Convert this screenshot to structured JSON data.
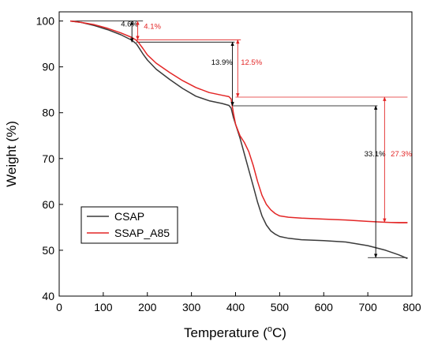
{
  "chart_data": {
    "type": "line",
    "xlabel_main": "Temperature (",
    "xlabel_sup": "o",
    "xlabel_end": "C)",
    "ylabel": "Weight (%)",
    "xlim": [
      0,
      800
    ],
    "ylim": [
      40,
      102
    ],
    "x_ticks": [
      0,
      100,
      200,
      300,
      400,
      500,
      600,
      700,
      800
    ],
    "y_ticks": [
      40,
      50,
      60,
      70,
      80,
      90,
      100
    ],
    "grid": false,
    "legend_position": "bottom-left",
    "series": [
      {
        "name": "CSAP",
        "color": "#3a3a3a",
        "x": [
          25,
          50,
          80,
          110,
          140,
          165,
          175,
          180,
          190,
          200,
          220,
          250,
          280,
          310,
          340,
          370,
          385,
          390,
          395,
          400,
          410,
          420,
          430,
          440,
          450,
          460,
          470,
          480,
          490,
          500,
          520,
          550,
          600,
          650,
          700,
          740,
          770,
          790
        ],
        "y": [
          100,
          99.7,
          99.0,
          98.1,
          97.0,
          95.8,
          95.0,
          94.3,
          92.8,
          91.5,
          89.5,
          87.3,
          85.3,
          83.6,
          82.6,
          82.0,
          81.6,
          81.0,
          79.0,
          77.5,
          74.5,
          71.0,
          67.5,
          64.0,
          60.5,
          57.5,
          55.5,
          54.2,
          53.5,
          53.0,
          52.6,
          52.3,
          52.1,
          51.8,
          51.0,
          50.0,
          49.0,
          48.2
        ]
      },
      {
        "name": "SSAP_A85",
        "color": "#e32626",
        "x": [
          25,
          50,
          80,
          110,
          140,
          165,
          175,
          180,
          190,
          200,
          220,
          250,
          280,
          310,
          340,
          370,
          385,
          390,
          395,
          400,
          410,
          420,
          430,
          440,
          450,
          460,
          470,
          480,
          490,
          500,
          520,
          550,
          600,
          650,
          700,
          740,
          770,
          790
        ],
        "y": [
          100,
          99.7,
          99.2,
          98.4,
          97.4,
          96.4,
          95.8,
          95.3,
          94.0,
          92.6,
          90.8,
          88.8,
          87.0,
          85.5,
          84.4,
          83.8,
          83.5,
          83.0,
          80.0,
          77.5,
          75.0,
          73.5,
          71.5,
          68.5,
          65.0,
          62.0,
          60.0,
          58.8,
          58.0,
          57.5,
          57.2,
          57.0,
          56.8,
          56.6,
          56.3,
          56.1,
          56.0,
          56.0
        ]
      }
    ],
    "annotations": [
      {
        "text": "4.6%",
        "color": "#000000",
        "x_text": 140,
        "y_text": 98.8,
        "arrow_x": 165,
        "y_from": 100,
        "y_to": 95.4,
        "line_x_from": 25,
        "line_x_to": 190,
        "ref_y": [
          100,
          95.4
        ]
      },
      {
        "text": "4.1%",
        "color": "#e32626",
        "x_text": 192,
        "y_text": 98.3,
        "arrow_x": 178,
        "y_from": 100,
        "y_to": 95.9,
        "ref_y": [
          95.9
        ]
      },
      {
        "text": "13.9%",
        "color": "#000000",
        "x_text": 345,
        "y_text": 90.5,
        "arrow_x": 393,
        "y_from": 95.4,
        "y_to": 81.5,
        "ref_y": [
          81.5
        ]
      },
      {
        "text": "12.5%",
        "color": "#e32626",
        "x_text": 412,
        "y_text": 90.5,
        "arrow_x": 405,
        "y_from": 95.9,
        "y_to": 83.4,
        "ref_y": [
          83.4
        ]
      },
      {
        "text": "33.1%",
        "color": "#000000",
        "x_text": 692,
        "y_text": 70.5,
        "arrow_x": 718,
        "y_from": 81.5,
        "y_to": 48.4,
        "ref_y": [
          48.4
        ]
      },
      {
        "text": "27.3%",
        "color": "#e32626",
        "x_text": 752,
        "y_text": 70.5,
        "arrow_x": 738,
        "y_from": 83.4,
        "y_to": 56.1,
        "ref_y": [
          56.1
        ]
      }
    ]
  }
}
